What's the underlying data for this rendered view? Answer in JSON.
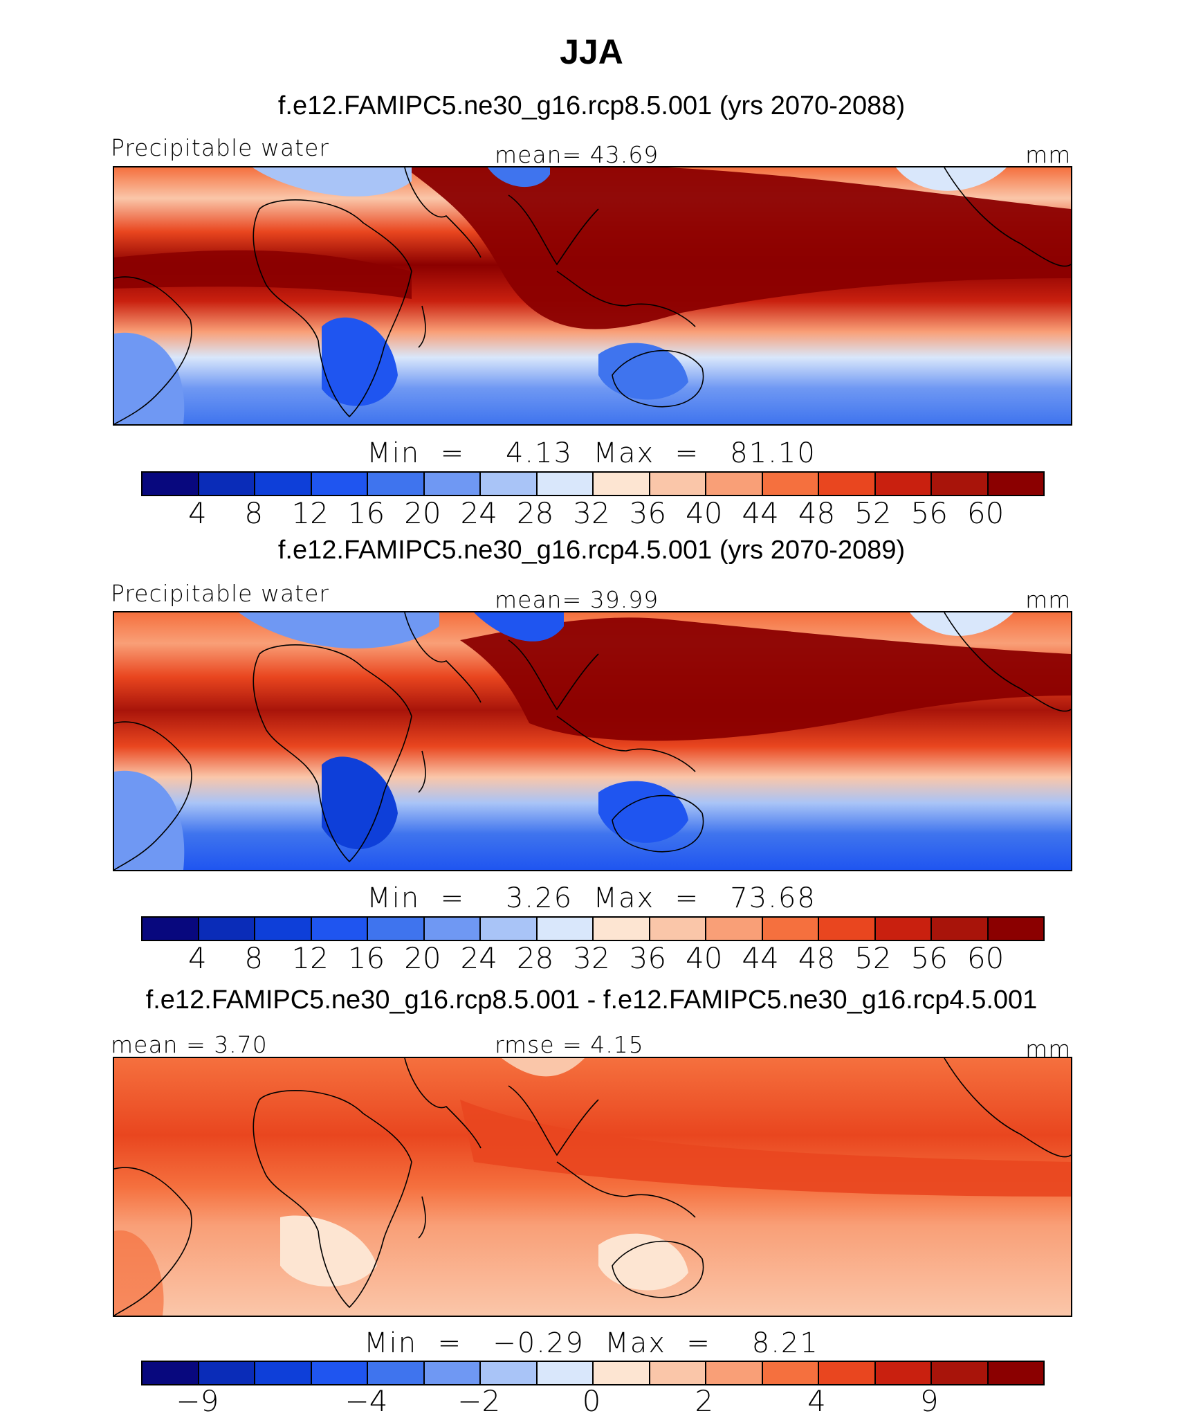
{
  "title": "JJA",
  "colors": {
    "palette": [
      "#08087e",
      "#0a2cb8",
      "#0e3fd9",
      "#1f55f0",
      "#3f74ee",
      "#6f98f3",
      "#a9c4f7",
      "#d9e7fb",
      "#fde5d2",
      "#fac6a9",
      "#f99f77",
      "#f5703e",
      "#e9461f",
      "#c9200f",
      "#a8140a",
      "#8b0000"
    ]
  },
  "panels": [
    {
      "id": "rcp85",
      "subtitle": "f.e12.FAMIPC5.ne30_g16.rcp8.5.001 (yrs 2070-2088)",
      "left_label": "Precipitable water",
      "center_label": "mean=   43.69",
      "right_label": "mm",
      "stats": "Min  =    4.13  Max  =   81.10",
      "ticks": [
        "4",
        "8",
        "12",
        "16",
        "20",
        "24",
        "28",
        "32",
        "36",
        "40",
        "44",
        "48",
        "52",
        "56",
        "60"
      ]
    },
    {
      "id": "rcp45",
      "subtitle": "f.e12.FAMIPC5.ne30_g16.rcp4.5.001 (yrs 2070-2089)",
      "left_label": "Precipitable water",
      "center_label": "mean=   39.99",
      "right_label": "mm",
      "stats": "Min  =    3.26  Max  =   73.68",
      "ticks": [
        "4",
        "8",
        "12",
        "16",
        "20",
        "24",
        "28",
        "32",
        "36",
        "40",
        "44",
        "48",
        "52",
        "56",
        "60"
      ]
    },
    {
      "id": "diff",
      "subtitle": "f.e12.FAMIPC5.ne30_g16.rcp8.5.001 - f.e12.FAMIPC5.ne30_g16.rcp4.5.001",
      "left_label": "mean =    3.70",
      "center_label": "rmse =    4.15",
      "right_label": "mm",
      "stats": "Min  =   −0.29  Max  =    8.21",
      "ticks": [
        "−9",
        "−4",
        "−2",
        "0",
        "2",
        "4",
        "9"
      ]
    }
  ]
}
